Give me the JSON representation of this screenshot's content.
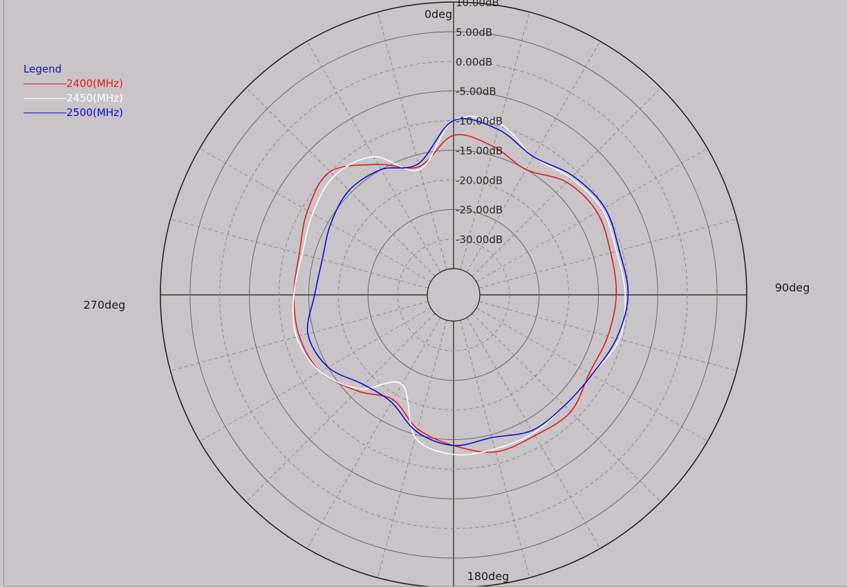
{
  "legend": {
    "title": "Legend"
  },
  "chart_data": {
    "type": "polar-line",
    "angle_labels": [
      "0deg",
      "90deg",
      "180deg",
      "270deg"
    ],
    "r_ticks": [
      "10.00dB",
      "5.00dB",
      "0.00dB",
      "-5.00dB",
      "-10.00dB",
      "-15.00dB",
      "-20.00dB",
      "-25.00dB",
      "-30.00dB"
    ],
    "r_range_dB": [
      -35,
      10
    ],
    "angle_step_deg": 15,
    "grid": true,
    "legend_position": "top-left",
    "series": [
      {
        "name": "2400(MHz)",
        "color": "#e21a1a",
        "angles": [
          0,
          15,
          30,
          45,
          60,
          75,
          90,
          105,
          120,
          135,
          150,
          165,
          180,
          195,
          210,
          225,
          240,
          255,
          270,
          285,
          300,
          315,
          330,
          345
        ],
        "values_dB": [
          -12.5,
          -13.5,
          -15,
          -12.5,
          -11.5,
          -12,
          -12,
          -12.5,
          -13,
          -11.5,
          -12,
          -12,
          -14,
          -16,
          -19,
          -16.5,
          -13.5,
          -12.5,
          -12.5,
          -12.5,
          -11,
          -10,
          -14,
          -17
        ]
      },
      {
        "name": "2450(MHz)",
        "color": "#ffffff",
        "angles": [
          0,
          15,
          30,
          45,
          60,
          75,
          90,
          105,
          120,
          135,
          150,
          165,
          180,
          195,
          210,
          225,
          240,
          255,
          270,
          285,
          300,
          315,
          330,
          345
        ],
        "values_dB": [
          -10,
          -9.5,
          -12.5,
          -11.5,
          -10.5,
          -11,
          -10.5,
          -10.5,
          -12.5,
          -13,
          -12.5,
          -12.5,
          -12.5,
          -14.5,
          -22,
          -17,
          -13.5,
          -12,
          -12.5,
          -13,
          -12,
          -11,
          -12.5,
          -17.5
        ]
      },
      {
        "name": "2500(MHz)",
        "color": "#0a0ad2",
        "angles": [
          0,
          15,
          30,
          45,
          60,
          75,
          90,
          105,
          120,
          135,
          150,
          165,
          180,
          195,
          210,
          225,
          240,
          255,
          270,
          285,
          300,
          315,
          330,
          345
        ],
        "values_dB": [
          -10,
          -10.5,
          -12.5,
          -11,
          -10,
          -10.5,
          -10,
          -11,
          -12.5,
          -13,
          -13,
          -14.5,
          -14,
          -15.5,
          -18.5,
          -18,
          -15,
          -14,
          -16,
          -16.5,
          -15.5,
          -14.5,
          -15,
          -16.5
        ]
      }
    ]
  }
}
